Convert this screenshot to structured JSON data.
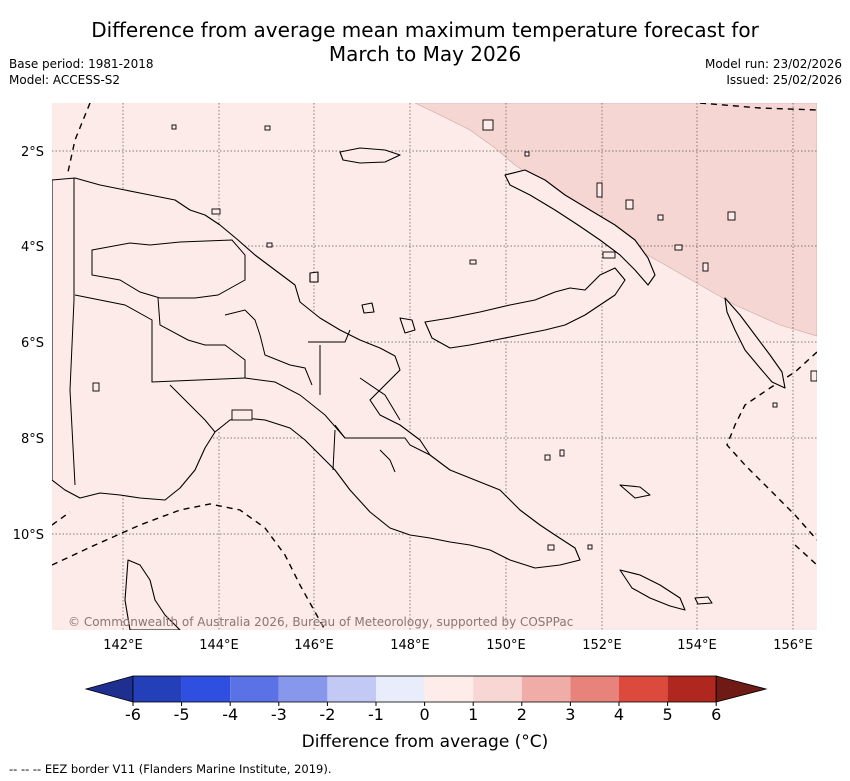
{
  "title_line1": "Difference from average mean maximum temperature forecast for",
  "title_line2": "March to May 2026",
  "base_period": "Base period: 1981-2018",
  "model": "Model: ACCESS-S2",
  "model_run": "Model run: 23/02/2026",
  "issued": "Issued: 25/02/2026",
  "copyright": "© Commonwealth of Australia 2026, Bureau of Meteorology, supported by COSPPac",
  "lat_labels": [
    "2°S",
    "4°S",
    "6°S",
    "8°S",
    "10°S"
  ],
  "lon_labels": [
    "142°E",
    "144°E",
    "146°E",
    "148°E",
    "150°E",
    "152°E",
    "154°E",
    "156°E"
  ],
  "colorbar": {
    "ticks": [
      "-6",
      "-5",
      "-4",
      "-3",
      "-2",
      "-1",
      "0",
      "1",
      "2",
      "3",
      "4",
      "5",
      "6"
    ],
    "colors": [
      "#1f2f8f",
      "#2340b8",
      "#2f4fe0",
      "#5a72e6",
      "#8798ec",
      "#c2c9f4",
      "#e9ecfb",
      "#fdecea",
      "#f8d6d3",
      "#f0aca6",
      "#e8837b",
      "#dc4a3e",
      "#b0271f",
      "#6f1a14"
    ],
    "label": "Difference from average ($^\\circ$C)",
    "label_display": "Difference from average (°C)"
  },
  "map_colors": {
    "background_zone": "#fcebe9",
    "warm_zone": "#f5d6d3",
    "land_outline": "#000000"
  },
  "legend_note": "-- -- -- EEZ border V11 (Flanders Marine Institute, 2019)."
}
